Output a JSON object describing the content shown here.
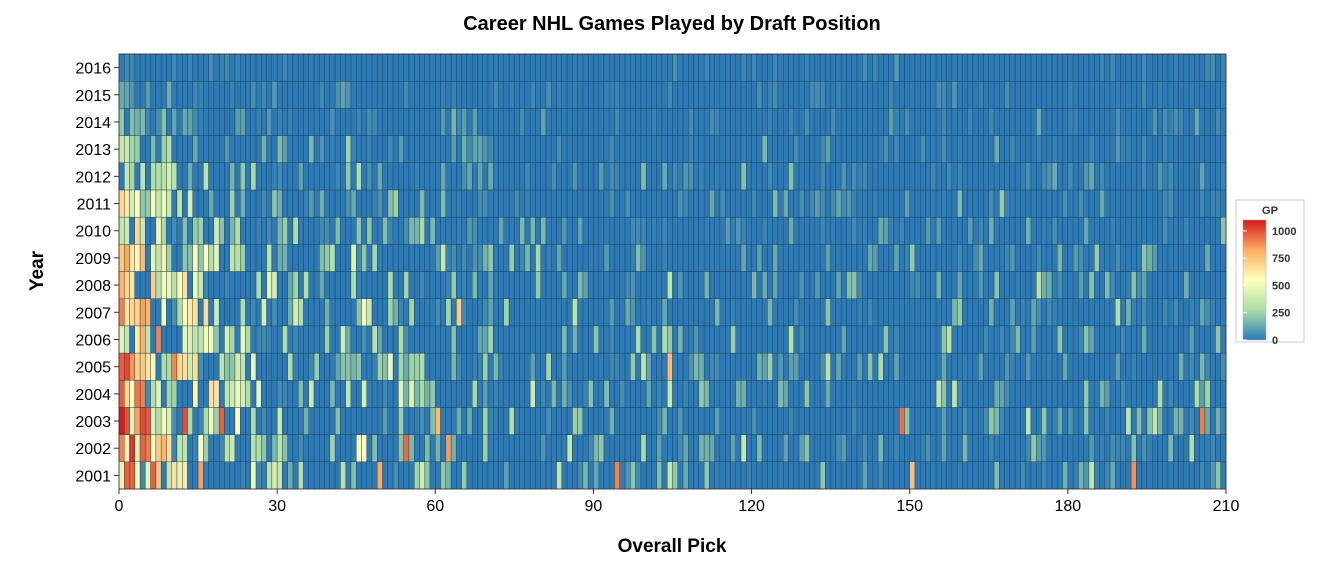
{
  "chart_data": {
    "type": "heatmap",
    "title": "Career NHL Games Played by Draft Position",
    "xlabel": "Overall Pick",
    "ylabel": "Year",
    "xlim": [
      0,
      210
    ],
    "x_ticks": [
      0,
      30,
      60,
      90,
      120,
      150,
      180,
      210
    ],
    "years": [
      2001,
      2002,
      2003,
      2004,
      2005,
      2006,
      2007,
      2008,
      2009,
      2010,
      2011,
      2012,
      2013,
      2014,
      2015,
      2016
    ],
    "picks_per_year": 210,
    "color_scale": {
      "name": "GP",
      "min": 0,
      "max": 1100,
      "ticks": [
        0,
        250,
        500,
        750,
        1000
      ],
      "colors": [
        "#2c7bb6",
        "#abdda4",
        "#ffffbf",
        "#fdae61",
        "#d7191c"
      ]
    },
    "legend_position": "right",
    "grid": false,
    "notable_cells": [
      {
        "year": 2001,
        "pick": 15,
        "gp": 850
      },
      {
        "year": 2001,
        "pick": 49,
        "gp": 820
      },
      {
        "year": 2001,
        "pick": 94,
        "gp": 900
      },
      {
        "year": 2001,
        "pick": 150,
        "gp": 760
      },
      {
        "year": 2001,
        "pick": 192,
        "gp": 880
      },
      {
        "year": 2002,
        "pick": 2,
        "gp": 1050
      },
      {
        "year": 2002,
        "pick": 54,
        "gp": 950
      },
      {
        "year": 2002,
        "pick": 62,
        "gp": 860
      },
      {
        "year": 2003,
        "pick": 1,
        "gp": 1000
      },
      {
        "year": 2003,
        "pick": 5,
        "gp": 980
      },
      {
        "year": 2003,
        "pick": 12,
        "gp": 1000
      },
      {
        "year": 2003,
        "pick": 19,
        "gp": 970
      },
      {
        "year": 2003,
        "pick": 60,
        "gp": 780
      },
      {
        "year": 2003,
        "pick": 148,
        "gp": 940
      },
      {
        "year": 2003,
        "pick": 205,
        "gp": 920
      },
      {
        "year": 2004,
        "pick": 0,
        "gp": 980
      },
      {
        "year": 2004,
        "pick": 3,
        "gp": 930
      },
      {
        "year": 2005,
        "pick": 10,
        "gp": 900
      },
      {
        "year": 2005,
        "pick": 104,
        "gp": 780
      },
      {
        "year": 2006,
        "pick": 4,
        "gp": 820
      },
      {
        "year": 2007,
        "pick": 5,
        "gp": 800
      },
      {
        "year": 2007,
        "pick": 64,
        "gp": 720
      },
      {
        "year": 2008,
        "pick": 6,
        "gp": 720
      }
    ]
  }
}
